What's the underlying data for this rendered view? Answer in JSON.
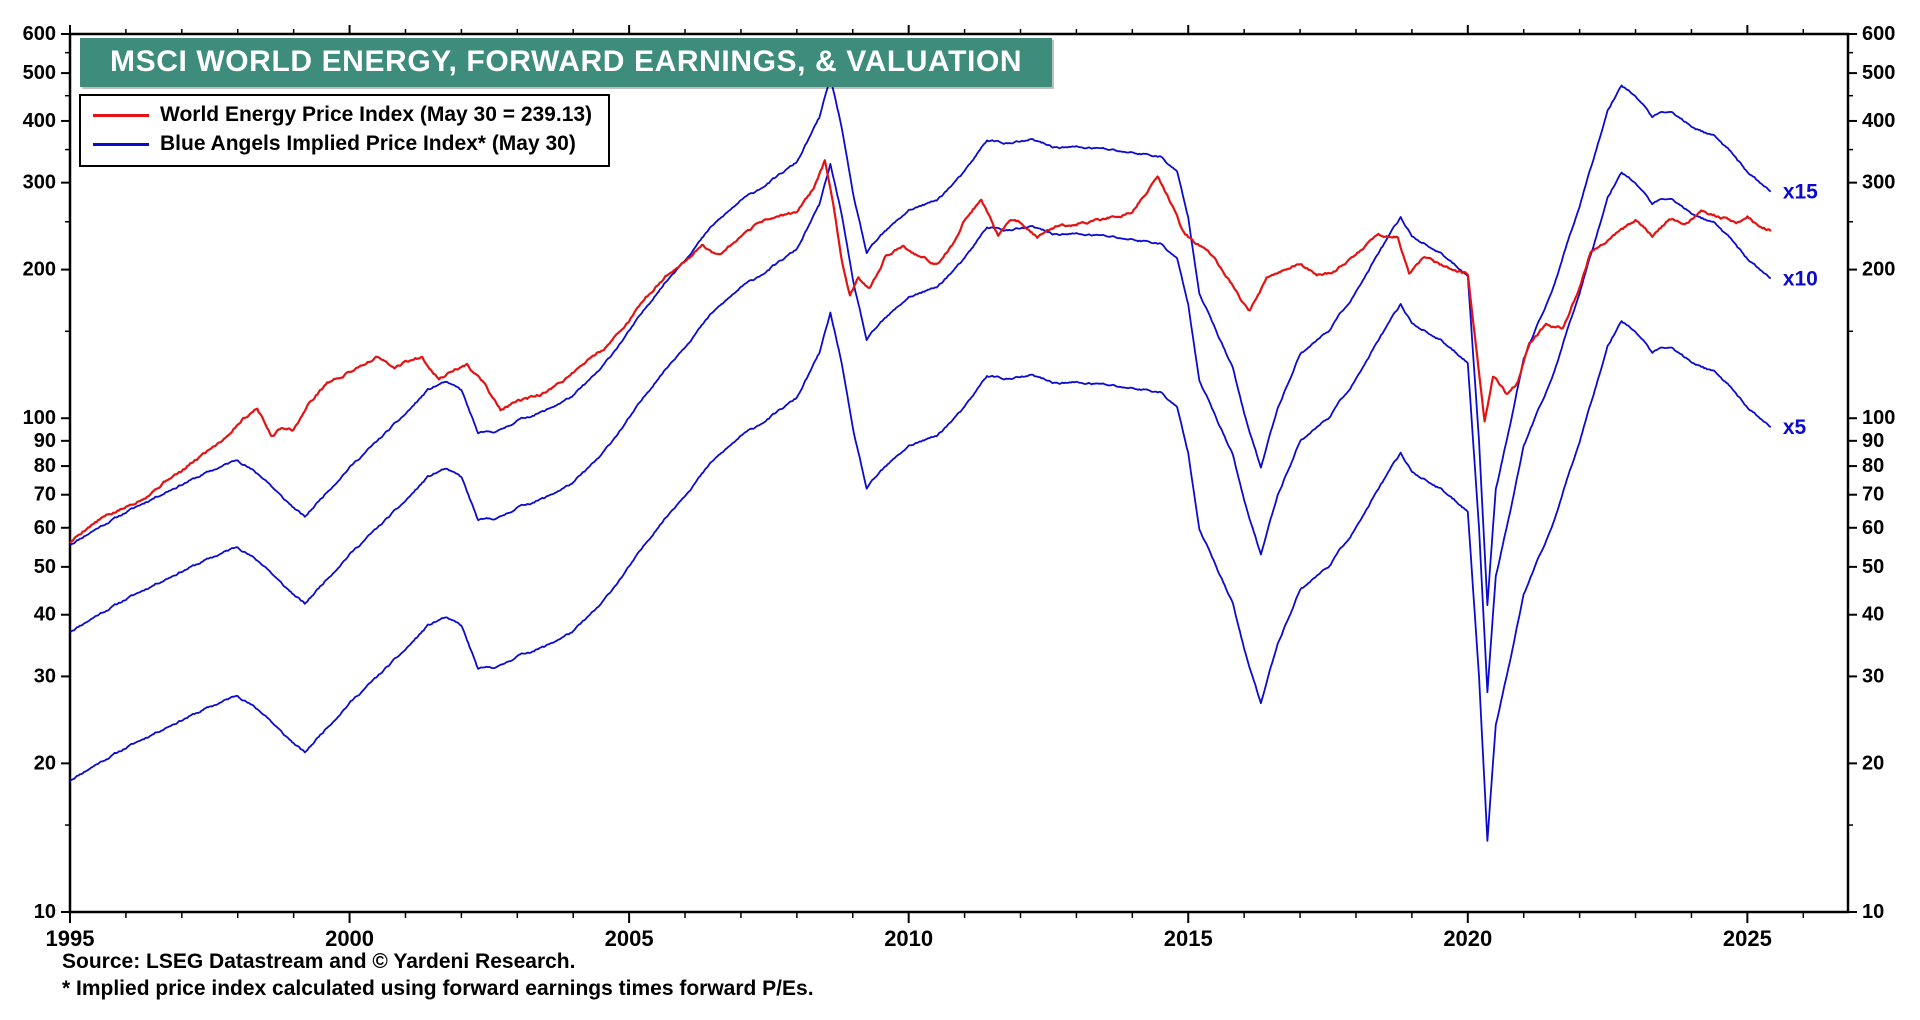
{
  "title": "MSCI WORLD ENERGY, FORWARD EARNINGS, & VALUATION",
  "legend": [
    {
      "label": "World Energy Price Index (May 30 = 239.13)",
      "color": "#e41313"
    },
    {
      "label": "Blue Angels Implied Price Index* (May 30)",
      "color": "#0b0bd0"
    }
  ],
  "footer": {
    "source": "Source: LSEG Datastream and © Yardeni Research.",
    "note": "* Implied price index calculated using forward earnings times forward P/Es."
  },
  "colors": {
    "banner_bg": "#3e8d7c",
    "banner_text": "#ffffff",
    "red": "#e41313",
    "blue": "#0b0bd0",
    "frame": "#000000"
  },
  "chart_data": {
    "type": "line",
    "y_scale": "log",
    "x_range": [
      1995,
      2026.8
    ],
    "y_range": [
      10,
      600
    ],
    "y_ticks_labeled": [
      10,
      20,
      30,
      40,
      50,
      60,
      70,
      80,
      90,
      100,
      200,
      300,
      400,
      500,
      600
    ],
    "y_ticks_minor": [
      15,
      150,
      250,
      350,
      450,
      550
    ],
    "x_ticks_labeled": [
      1995,
      2000,
      2005,
      2010,
      2015,
      2020,
      2025
    ],
    "x_tick_minor_step": 1,
    "grid": false,
    "legend_position": "top-left",
    "series": [
      {
        "name": "World Energy Price Index (May 30 = 239.13)",
        "color_key": "red",
        "points": [
          [
            1995.0,
            56
          ],
          [
            1995.3,
            60
          ],
          [
            1995.6,
            63
          ],
          [
            1996.0,
            66
          ],
          [
            1996.4,
            70
          ],
          [
            1996.8,
            76
          ],
          [
            1997.0,
            78
          ],
          [
            1997.4,
            85
          ],
          [
            1997.8,
            92
          ],
          [
            1998.1,
            100
          ],
          [
            1998.35,
            105
          ],
          [
            1998.6,
            92
          ],
          [
            1998.8,
            96
          ],
          [
            1999.0,
            95
          ],
          [
            1999.3,
            108
          ],
          [
            1999.6,
            118
          ],
          [
            1999.9,
            122
          ],
          [
            2000.2,
            128
          ],
          [
            2000.5,
            133
          ],
          [
            2000.8,
            126
          ],
          [
            2001.0,
            130
          ],
          [
            2001.3,
            133
          ],
          [
            2001.6,
            120
          ],
          [
            2001.9,
            126
          ],
          [
            2002.1,
            128
          ],
          [
            2002.4,
            118
          ],
          [
            2002.7,
            104
          ],
          [
            2003.0,
            108
          ],
          [
            2003.3,
            110
          ],
          [
            2003.6,
            114
          ],
          [
            2004.0,
            124
          ],
          [
            2004.3,
            132
          ],
          [
            2004.6,
            140
          ],
          [
            2005.0,
            158
          ],
          [
            2005.3,
            175
          ],
          [
            2005.7,
            196
          ],
          [
            2006.0,
            208
          ],
          [
            2006.3,
            224
          ],
          [
            2006.6,
            213
          ],
          [
            2007.0,
            232
          ],
          [
            2007.4,
            252
          ],
          [
            2007.8,
            258
          ],
          [
            2008.0,
            262
          ],
          [
            2008.3,
            292
          ],
          [
            2008.5,
            332
          ],
          [
            2008.65,
            270
          ],
          [
            2008.8,
            210
          ],
          [
            2008.95,
            178
          ],
          [
            2009.1,
            192
          ],
          [
            2009.3,
            184
          ],
          [
            2009.6,
            214
          ],
          [
            2009.9,
            222
          ],
          [
            2010.2,
            212
          ],
          [
            2010.5,
            205
          ],
          [
            2010.8,
            225
          ],
          [
            2011.0,
            252
          ],
          [
            2011.3,
            278
          ],
          [
            2011.6,
            235
          ],
          [
            2011.8,
            252
          ],
          [
            2012.0,
            250
          ],
          [
            2012.3,
            233
          ],
          [
            2012.6,
            244
          ],
          [
            2013.0,
            248
          ],
          [
            2013.4,
            252
          ],
          [
            2013.8,
            258
          ],
          [
            2014.0,
            262
          ],
          [
            2014.45,
            308
          ],
          [
            2014.7,
            272
          ],
          [
            2014.9,
            240
          ],
          [
            2015.1,
            228
          ],
          [
            2015.4,
            215
          ],
          [
            2015.7,
            192
          ],
          [
            2015.95,
            172
          ],
          [
            2016.1,
            165
          ],
          [
            2016.4,
            192
          ],
          [
            2016.7,
            198
          ],
          [
            2017.0,
            206
          ],
          [
            2017.3,
            194
          ],
          [
            2017.6,
            198
          ],
          [
            2018.0,
            214
          ],
          [
            2018.4,
            236
          ],
          [
            2018.75,
            232
          ],
          [
            2018.95,
            196
          ],
          [
            2019.2,
            212
          ],
          [
            2019.5,
            205
          ],
          [
            2019.8,
            198
          ],
          [
            2020.0,
            196
          ],
          [
            2020.15,
            140
          ],
          [
            2020.3,
            98
          ],
          [
            2020.45,
            122
          ],
          [
            2020.7,
            112
          ],
          [
            2020.9,
            118
          ],
          [
            2021.1,
            142
          ],
          [
            2021.4,
            155
          ],
          [
            2021.7,
            152
          ],
          [
            2022.0,
            184
          ],
          [
            2022.2,
            218
          ],
          [
            2022.5,
            230
          ],
          [
            2022.8,
            242
          ],
          [
            2023.0,
            252
          ],
          [
            2023.3,
            234
          ],
          [
            2023.6,
            252
          ],
          [
            2023.9,
            248
          ],
          [
            2024.2,
            262
          ],
          [
            2024.5,
            256
          ],
          [
            2024.8,
            250
          ],
          [
            2025.0,
            256
          ],
          [
            2025.2,
            244
          ],
          [
            2025.42,
            239.13
          ]
        ]
      }
    ],
    "blue_angels": {
      "name": "Blue Angels Implied Price Index* (May 30)",
      "color_key": "blue",
      "lines": [
        {
          "pe": 15,
          "label": "x15"
        },
        {
          "pe": 10,
          "label": "x10"
        },
        {
          "pe": 5,
          "label": "x5"
        }
      ],
      "forward_earnings_points": [
        [
          1995.0,
          3.7
        ],
        [
          1995.5,
          4.0
        ],
        [
          1996.0,
          4.3
        ],
        [
          1996.5,
          4.6
        ],
        [
          1997.0,
          4.9
        ],
        [
          1997.5,
          5.2
        ],
        [
          1998.0,
          5.5
        ],
        [
          1998.5,
          5.0
        ],
        [
          1998.8,
          4.6
        ],
        [
          1999.2,
          4.2
        ],
        [
          1999.5,
          4.6
        ],
        [
          2000.0,
          5.3
        ],
        [
          2000.5,
          6.0
        ],
        [
          2001.0,
          6.8
        ],
        [
          2001.4,
          7.6
        ],
        [
          2001.7,
          7.9
        ],
        [
          2002.0,
          7.6
        ],
        [
          2002.3,
          6.2
        ],
        [
          2002.7,
          6.3
        ],
        [
          2003.0,
          6.6
        ],
        [
          2003.5,
          6.9
        ],
        [
          2004.0,
          7.4
        ],
        [
          2004.5,
          8.4
        ],
        [
          2005.0,
          10.0
        ],
        [
          2005.5,
          12.0
        ],
        [
          2006.0,
          14.0
        ],
        [
          2006.5,
          16.4
        ],
        [
          2007.0,
          18.4
        ],
        [
          2007.5,
          20.0
        ],
        [
          2008.0,
          22.0
        ],
        [
          2008.4,
          27.0
        ],
        [
          2008.6,
          32.6
        ],
        [
          2008.8,
          26.0
        ],
        [
          2009.0,
          19.0
        ],
        [
          2009.25,
          14.4
        ],
        [
          2009.5,
          15.6
        ],
        [
          2010.0,
          17.6
        ],
        [
          2010.5,
          18.4
        ],
        [
          2011.0,
          21.0
        ],
        [
          2011.4,
          24.4
        ],
        [
          2011.8,
          24.0
        ],
        [
          2012.2,
          24.4
        ],
        [
          2012.6,
          23.6
        ],
        [
          2013.0,
          23.6
        ],
        [
          2013.5,
          23.4
        ],
        [
          2014.0,
          23.0
        ],
        [
          2014.5,
          22.6
        ],
        [
          2014.8,
          21.0
        ],
        [
          2015.0,
          17.0
        ],
        [
          2015.2,
          12.0
        ],
        [
          2015.5,
          10.0
        ],
        [
          2015.8,
          8.4
        ],
        [
          2016.0,
          6.8
        ],
        [
          2016.3,
          5.3
        ],
        [
          2016.6,
          7.0
        ],
        [
          2017.0,
          9.0
        ],
        [
          2017.5,
          10.0
        ],
        [
          2018.0,
          12.0
        ],
        [
          2018.5,
          15.0
        ],
        [
          2018.8,
          17.0
        ],
        [
          2019.0,
          15.6
        ],
        [
          2019.5,
          14.4
        ],
        [
          2020.0,
          13.0
        ],
        [
          2020.2,
          6.0
        ],
        [
          2020.35,
          2.8
        ],
        [
          2020.5,
          4.8
        ],
        [
          2020.8,
          6.8
        ],
        [
          2021.0,
          8.8
        ],
        [
          2021.5,
          12.0
        ],
        [
          2022.0,
          18.0
        ],
        [
          2022.5,
          28.0
        ],
        [
          2022.75,
          31.6
        ],
        [
          2023.0,
          30.0
        ],
        [
          2023.3,
          27.2
        ],
        [
          2023.6,
          28.0
        ],
        [
          2024.0,
          26.0
        ],
        [
          2024.4,
          24.8
        ],
        [
          2024.7,
          23.2
        ],
        [
          2025.0,
          21.0
        ],
        [
          2025.42,
          19.2
        ]
      ]
    }
  }
}
